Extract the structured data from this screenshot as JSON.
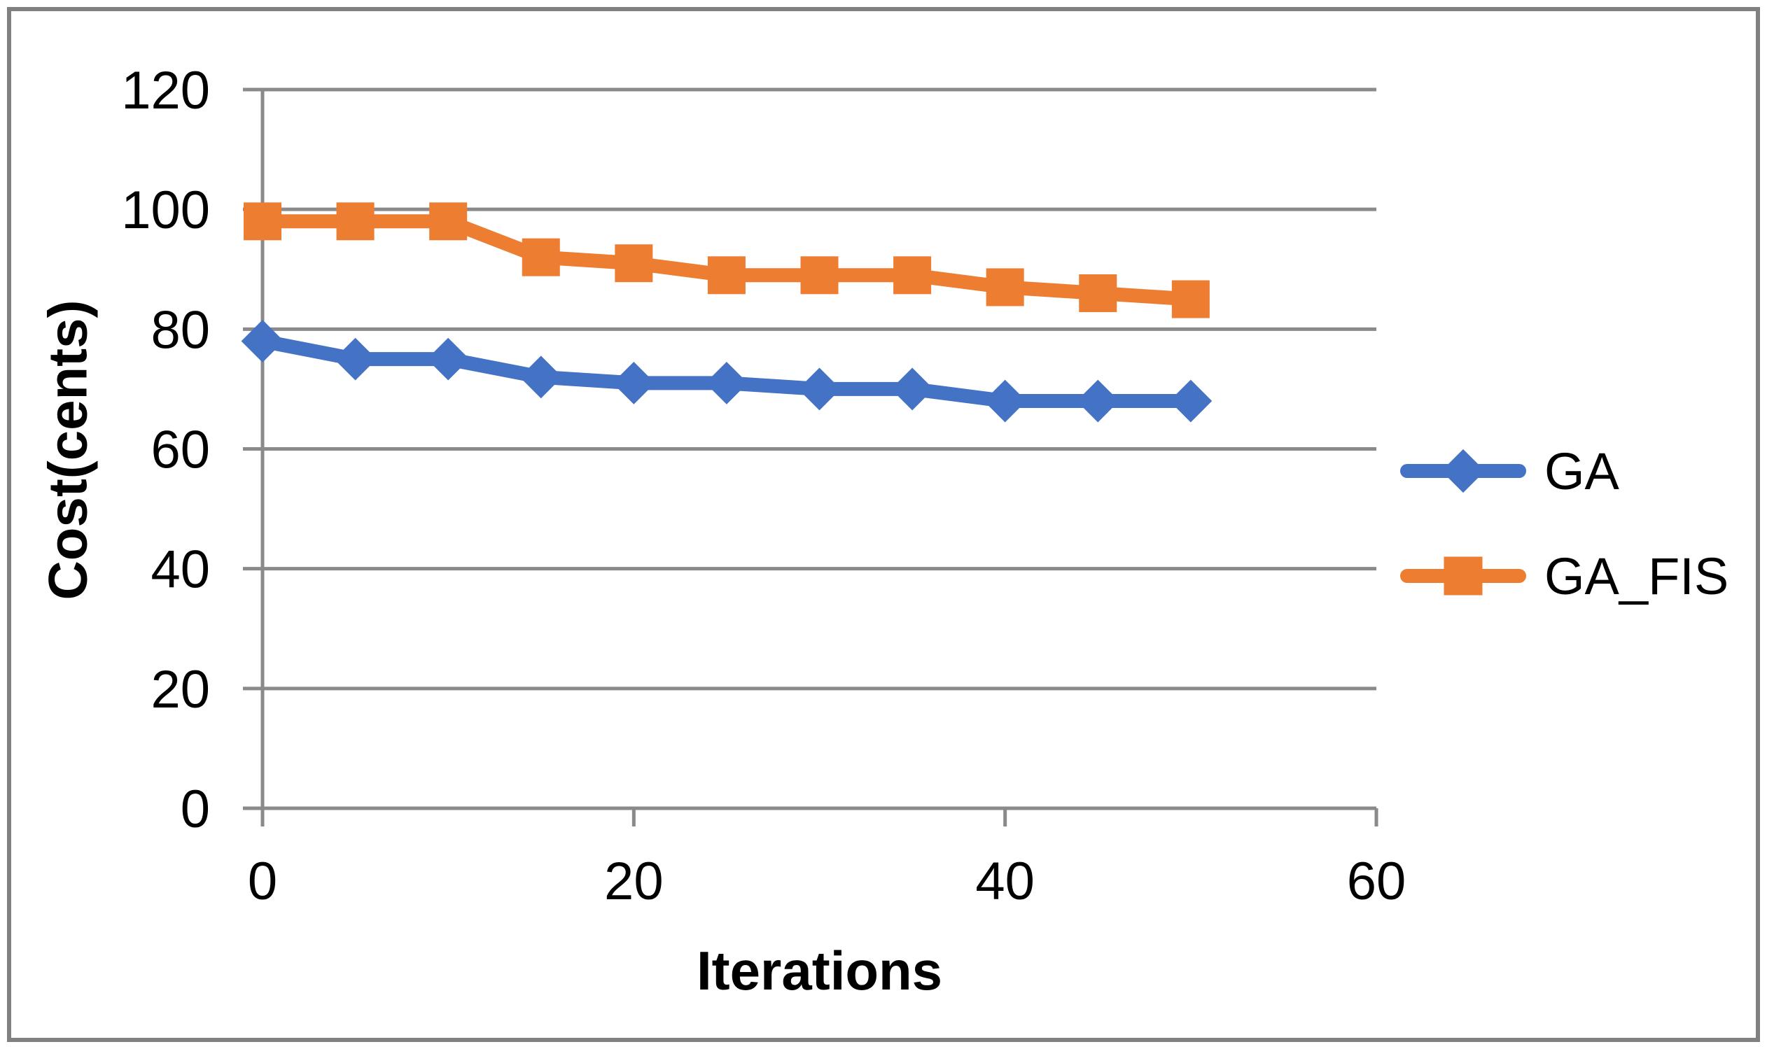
{
  "chart_data": {
    "type": "line",
    "title": "",
    "xlabel": "Iterations",
    "ylabel": "Cost(cents)",
    "xlim": [
      0,
      60
    ],
    "ylim": [
      0,
      120
    ],
    "x_ticks": [
      0,
      20,
      40,
      60
    ],
    "y_ticks": [
      0,
      20,
      40,
      60,
      80,
      100,
      120
    ],
    "grid": "horizontal-major",
    "legend_position": "right-middle",
    "x": [
      0,
      5,
      10,
      15,
      20,
      25,
      30,
      35,
      40,
      45,
      50
    ],
    "series": [
      {
        "name": "GA",
        "marker": "diamond",
        "color": "#4472C4",
        "values": [
          78,
          75,
          75,
          72,
          71,
          71,
          70,
          70,
          68,
          68,
          68
        ]
      },
      {
        "name": "GA_FIS",
        "marker": "square",
        "color": "#ED7D31",
        "values": [
          98,
          98,
          98,
          92,
          91,
          89,
          89,
          89,
          87,
          86,
          85
        ]
      }
    ]
  },
  "colors": {
    "background": "#FFFFFF",
    "plot_background": "#FFFFFF",
    "gridline": "#8A8A8A",
    "axis": "#8A8A8A",
    "frame_border": "#808080",
    "text": "#000000"
  }
}
